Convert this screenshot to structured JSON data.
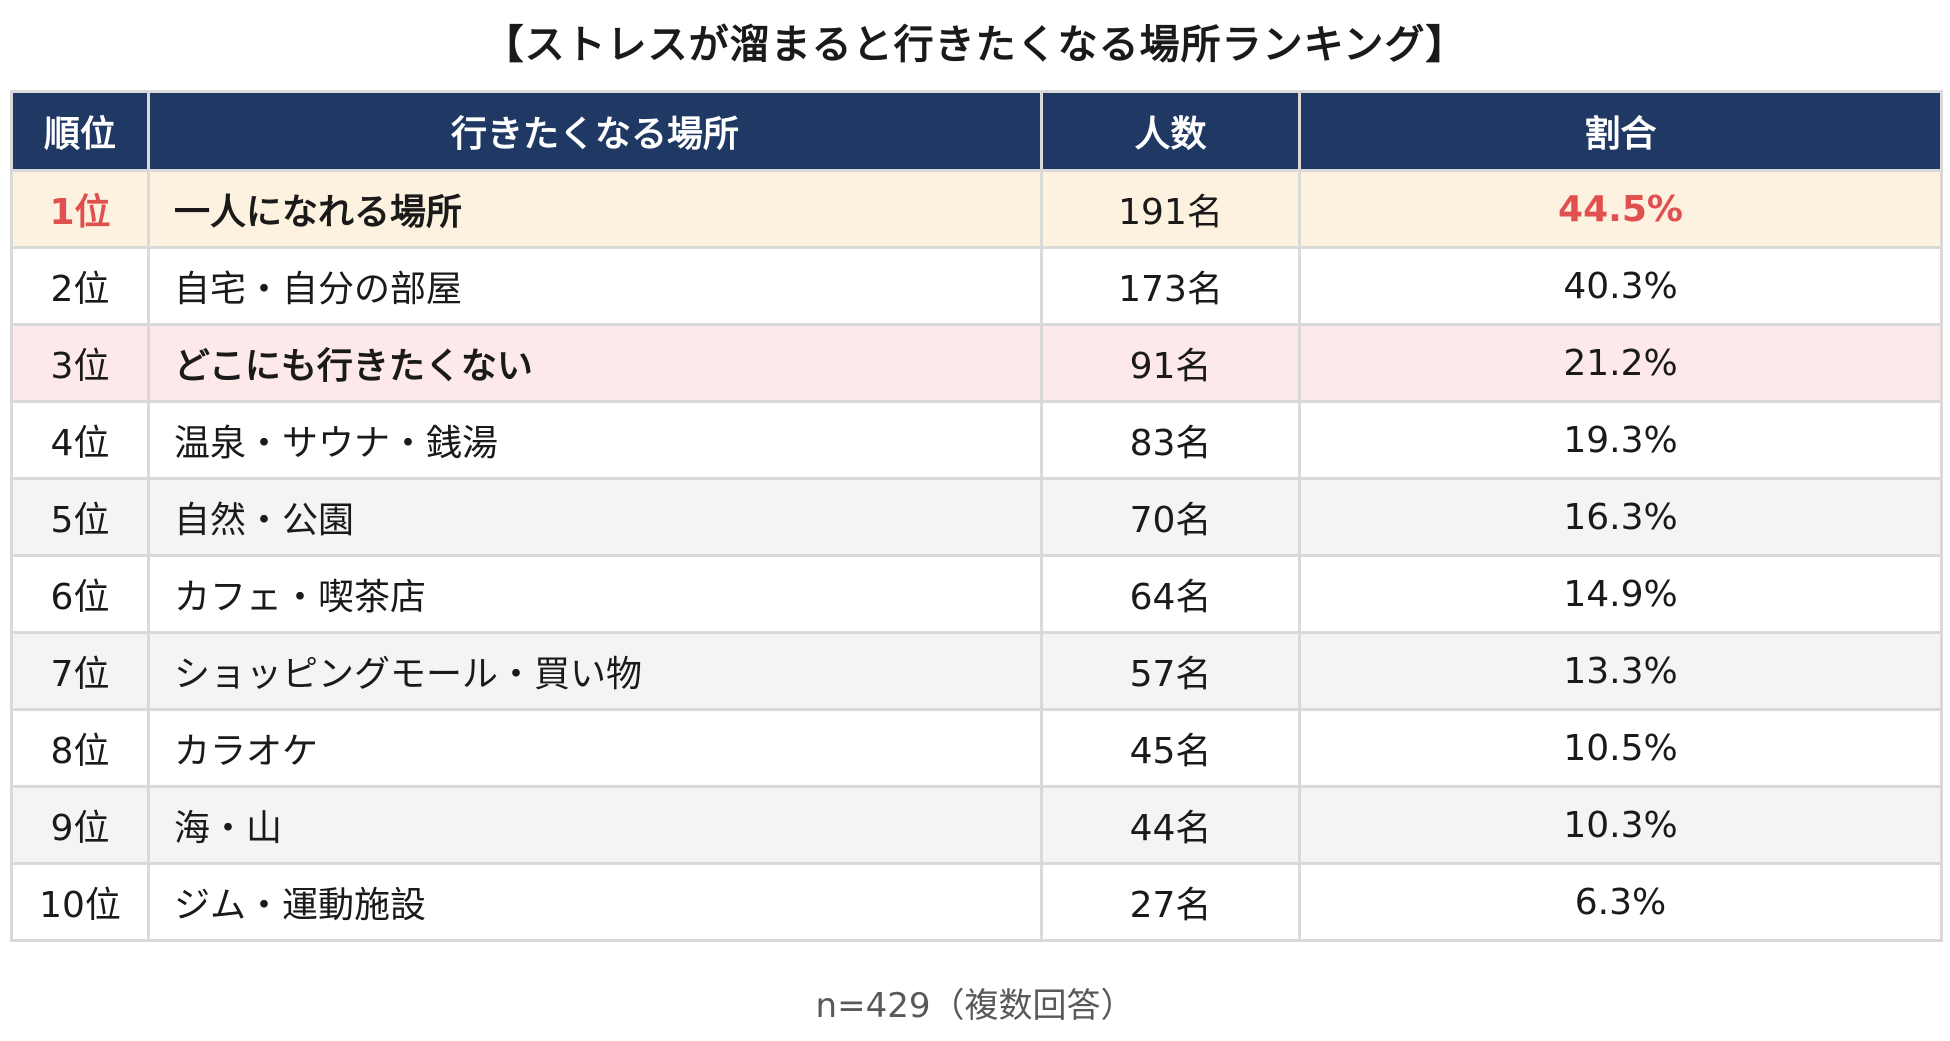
{
  "title": "【ストレスが溜まると行きたくなる場所ランキング】",
  "table": {
    "headers": {
      "rank": "順位",
      "place": "行きたくなる場所",
      "count": "人数",
      "ratio": "割合"
    },
    "rows": [
      {
        "rank": "1位",
        "place": "一人になれる場所",
        "count": "191名",
        "ratio": "44.5%"
      },
      {
        "rank": "2位",
        "place": "自宅・自分の部屋",
        "count": "173名",
        "ratio": "40.3%"
      },
      {
        "rank": "3位",
        "place": "どこにも行きたくない",
        "count": "91名",
        "ratio": "21.2%"
      },
      {
        "rank": "4位",
        "place": "温泉・サウナ・銭湯",
        "count": "83名",
        "ratio": "19.3%"
      },
      {
        "rank": "5位",
        "place": "自然・公園",
        "count": "70名",
        "ratio": "16.3%"
      },
      {
        "rank": "6位",
        "place": "カフェ・喫茶店",
        "count": "64名",
        "ratio": "14.9%"
      },
      {
        "rank": "7位",
        "place": "ショッピングモール・買い物",
        "count": "57名",
        "ratio": "13.3%"
      },
      {
        "rank": "8位",
        "place": "カラオケ",
        "count": "45名",
        "ratio": "10.5%"
      },
      {
        "rank": "9位",
        "place": "海・山",
        "count": "44名",
        "ratio": "10.3%"
      },
      {
        "rank": "10位",
        "place": "ジム・運動施設",
        "count": "27名",
        "ratio": "6.3%"
      }
    ]
  },
  "footnote": "n=429（複数回答）",
  "colors": {
    "header_bg": "#1f3864",
    "header_text": "#ffffff",
    "highlight_first_bg": "#fdf1df",
    "highlight_third_bg": "#fde8ea",
    "accent_red": "#e0504f",
    "alt_row_bg": "#f4f4f4",
    "border": "#d9d9d9"
  }
}
